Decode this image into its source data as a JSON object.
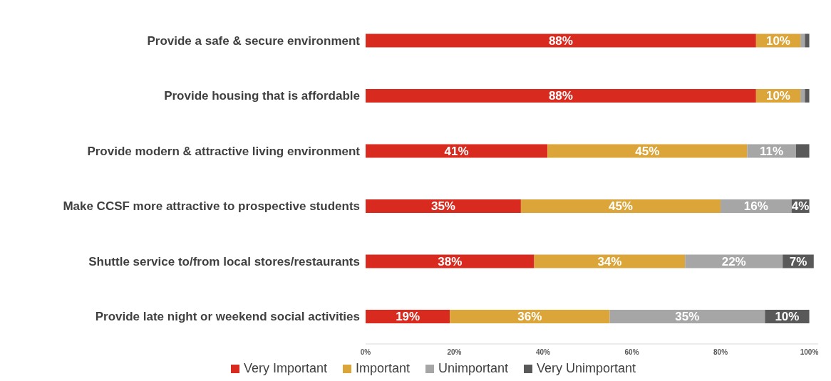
{
  "chart_data": {
    "type": "bar",
    "orientation": "horizontal",
    "stacked": true,
    "categories": [
      "Provide a safe & secure environment",
      "Provide housing that is affordable",
      "Provide modern & attractive living environment",
      "Make CCSF more attractive to prospective students",
      "Shuttle service to/from local stores/restaurants",
      "Provide late night or weekend social activities"
    ],
    "series": [
      {
        "name": "Very Important",
        "color": "#d92a1f",
        "values": [
          88,
          88,
          41,
          35,
          38,
          19
        ],
        "value_labels": [
          "88%",
          "88%",
          "41%",
          "35%",
          "38%",
          "19%"
        ]
      },
      {
        "name": "Important",
        "color": "#dba53a",
        "values": [
          10,
          10,
          45,
          45,
          34,
          36
        ],
        "value_labels": [
          "10%",
          "10%",
          "45%",
          "45%",
          "34%",
          "36%"
        ]
      },
      {
        "name": "Unimportant",
        "color": "#a6a6a6",
        "values": [
          1,
          1,
          11,
          16,
          22,
          35
        ],
        "value_labels": [
          null,
          null,
          "11%",
          "16%",
          "22%",
          "35%"
        ]
      },
      {
        "name": "Very Unimportant",
        "color": "#595959",
        "values": [
          1,
          1,
          3,
          4,
          7,
          10
        ],
        "value_labels": [
          null,
          null,
          null,
          "4%",
          "7%",
          "10%"
        ]
      }
    ],
    "xlim": [
      0,
      102
    ],
    "xticks": [
      {
        "value": 0,
        "label": "0%"
      },
      {
        "value": 20,
        "label": "20%"
      },
      {
        "value": 40,
        "label": "40%"
      },
      {
        "value": 60,
        "label": "60%"
      },
      {
        "value": 80,
        "label": "80%"
      },
      {
        "value": 100,
        "label": "100%"
      }
    ],
    "legend": "bottom",
    "grid": false
  }
}
